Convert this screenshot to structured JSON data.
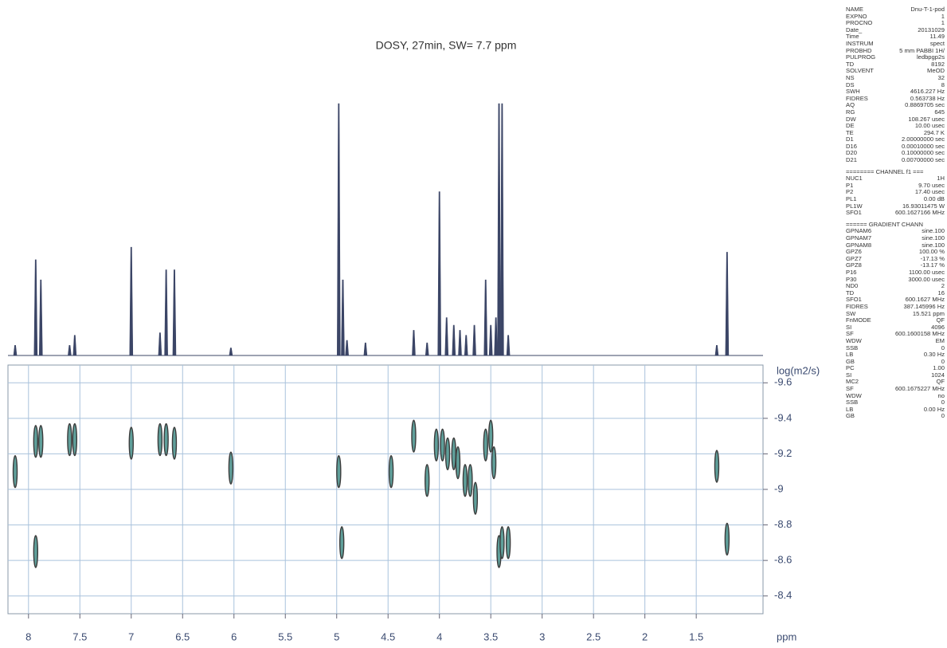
{
  "chart_data": {
    "type": "dosy",
    "title": "DOSY, 27min, SW= 7.7 ppm",
    "x_label": "ppm",
    "y_label": "log(m2/s)",
    "xlim": [
      8.2,
      0.85
    ],
    "xticks": [
      8.0,
      7.5,
      7.0,
      6.5,
      6.0,
      5.5,
      5.0,
      4.5,
      4.0,
      3.5,
      3.0,
      2.5,
      2.0,
      1.5
    ],
    "ylim": [
      -9.7,
      -8.3
    ],
    "yticks": [
      -9.6,
      -9.4,
      -9.2,
      -9.0,
      -8.8,
      -8.6,
      -8.4
    ],
    "grid": true,
    "spectrum": {
      "color": "#3b4566",
      "ylim": [
        0,
        100
      ],
      "x": [
        8.13,
        7.93,
        7.88,
        7.6,
        7.55,
        7.0,
        6.72,
        6.66,
        6.58,
        6.03,
        4.98,
        4.94,
        4.9,
        4.72,
        4.25,
        4.12,
        4.0,
        3.93,
        3.86,
        3.8,
        3.74,
        3.66,
        3.55,
        3.5,
        3.45,
        3.42,
        3.39,
        3.33,
        1.3,
        1.2
      ],
      "values": [
        4,
        38,
        30,
        4,
        8,
        43,
        9,
        34,
        34,
        3,
        100,
        30,
        6,
        5,
        10,
        5,
        65,
        15,
        12,
        10,
        8,
        12,
        30,
        12,
        15,
        100,
        100,
        8,
        4,
        41
      ]
    },
    "cross_peaks": {
      "color": "#3c3c3c",
      "x": [
        8.13,
        7.93,
        7.88,
        7.93,
        7.6,
        7.55,
        7.0,
        6.72,
        6.66,
        6.58,
        6.03,
        4.98,
        4.95,
        4.47,
        4.25,
        4.12,
        4.03,
        3.97,
        3.92,
        3.86,
        3.82,
        3.75,
        3.7,
        3.65,
        3.55,
        3.5,
        3.47,
        3.42,
        3.39,
        3.33,
        1.3,
        1.2
      ],
      "y": [
        -9.1,
        -9.27,
        -9.27,
        -8.65,
        -9.28,
        -9.28,
        -9.26,
        -9.28,
        -9.28,
        -9.26,
        -9.12,
        -9.1,
        -8.7,
        -9.1,
        -9.3,
        -9.05,
        -9.25,
        -9.25,
        -9.2,
        -9.2,
        -9.15,
        -9.05,
        -9.05,
        -8.95,
        -9.25,
        -9.3,
        -9.15,
        -8.65,
        -8.7,
        -8.7,
        -9.13,
        -8.72
      ]
    }
  },
  "parameters": {
    "acquisition": [
      [
        "NAME",
        "Dnu-T-1-pod"
      ],
      [
        "EXPNO",
        "1"
      ],
      [
        "PROCNO",
        "1"
      ],
      [
        "Date_",
        "20131029"
      ],
      [
        "Time",
        "11.49"
      ],
      [
        "INSTRUM",
        "spect"
      ],
      [
        "PROBHD",
        "5 mm PABBI 1H/"
      ],
      [
        "PULPROG",
        "ledbpgp2s"
      ],
      [
        "TD",
        "8192"
      ],
      [
        "SOLVENT",
        "MeOD"
      ],
      [
        "NS",
        "32"
      ],
      [
        "DS",
        "8"
      ],
      [
        "SWH",
        "4616.227 Hz"
      ],
      [
        "FIDRES",
        "0.563738 Hz"
      ],
      [
        "AQ",
        "0.8869705 sec"
      ],
      [
        "RG",
        "645"
      ],
      [
        "DW",
        "108.267 usec"
      ],
      [
        "DE",
        "10.00 usec"
      ],
      [
        "TE",
        "294.7 K"
      ],
      [
        "D1",
        "2.00000000 sec"
      ],
      [
        "D16",
        "0.00010000 sec"
      ],
      [
        "D20",
        "0.10000000 sec"
      ],
      [
        "D21",
        "0.00700000 sec"
      ]
    ],
    "channel_header": "======== CHANNEL f1 ===",
    "channel": [
      [
        "NUC1",
        "1H"
      ],
      [
        "P1",
        "9.70 usec"
      ],
      [
        "P2",
        "17.40 usec"
      ],
      [
        "PL1",
        "0.00 dB"
      ],
      [
        "PL1W",
        "16.93011475 W"
      ],
      [
        "SFO1",
        "600.1627166 MHz"
      ]
    ],
    "gradient_header": "====== GRADIENT CHANN",
    "gradient": [
      [
        "GPNAM6",
        "sine.100"
      ],
      [
        "GPNAM7",
        "sine.100"
      ],
      [
        "GPNAM8",
        "sine.100"
      ],
      [
        "GPZ6",
        "100.00 %"
      ],
      [
        "GPZ7",
        "-17.13 %"
      ],
      [
        "GPZ8",
        "-13.17 %"
      ],
      [
        "P16",
        "1100.00 usec"
      ],
      [
        "P30",
        "3000.00 usec"
      ],
      [
        "ND0",
        "2"
      ],
      [
        "TD",
        "16"
      ],
      [
        "SFO1",
        "600.1627 MHz"
      ],
      [
        "FIDRES",
        "387.145996 Hz"
      ],
      [
        "SW",
        "15.521 ppm"
      ],
      [
        "FnMODE",
        "QF"
      ],
      [
        "SI",
        "4096"
      ],
      [
        "SF",
        "600.1600158 MHz"
      ],
      [
        "WDW",
        "EM"
      ],
      [
        "SSB",
        "0"
      ],
      [
        "LB",
        "0.30 Hz"
      ],
      [
        "GB",
        "0"
      ],
      [
        "PC",
        "1.00"
      ],
      [
        "SI",
        "1024"
      ],
      [
        "MC2",
        "QF"
      ],
      [
        "SF",
        "600.1675227 MHz"
      ],
      [
        "WDW",
        "no"
      ],
      [
        "SSB",
        "0"
      ],
      [
        "LB",
        "0.00 Hz"
      ],
      [
        "GB",
        "0"
      ]
    ]
  }
}
